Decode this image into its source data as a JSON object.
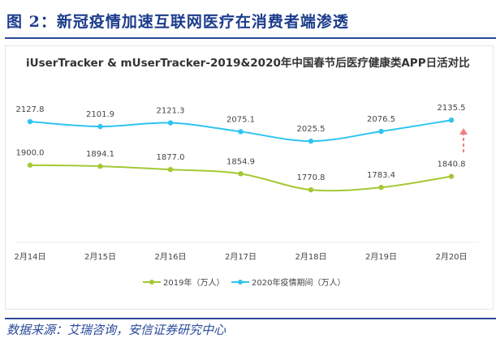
{
  "figure_title": "图 2：新冠疫情加速互联网医疗在消费者端渗透",
  "source": "数据来源：艾瑞咨询，安信证券研究中心",
  "chart_data": {
    "type": "line",
    "title": "iUserTracker & mUserTracker-2019&2020年中国春节后医疗健康类APP日活对比",
    "categories": [
      "2月14日",
      "2月15日",
      "2月16日",
      "2月17日",
      "2月18日",
      "2月19日",
      "2月20日"
    ],
    "series": [
      {
        "name": "2019年（万人）",
        "color": "#a4c834",
        "values": [
          1900.0,
          1894.1,
          1877.0,
          1854.9,
          1770.8,
          1783.4,
          1840.8
        ]
      },
      {
        "name": "2020年疫情期间（万人）",
        "color": "#2ec4f0",
        "values": [
          2127.8,
          2101.9,
          2121.3,
          2075.1,
          2025.5,
          2076.5,
          2135.5
        ]
      }
    ],
    "ylim": [
      1500,
      2200
    ],
    "grid": false,
    "legend": "bottom",
    "annotation": {
      "type": "dashed-arrow-up",
      "color": "#f08080"
    }
  }
}
